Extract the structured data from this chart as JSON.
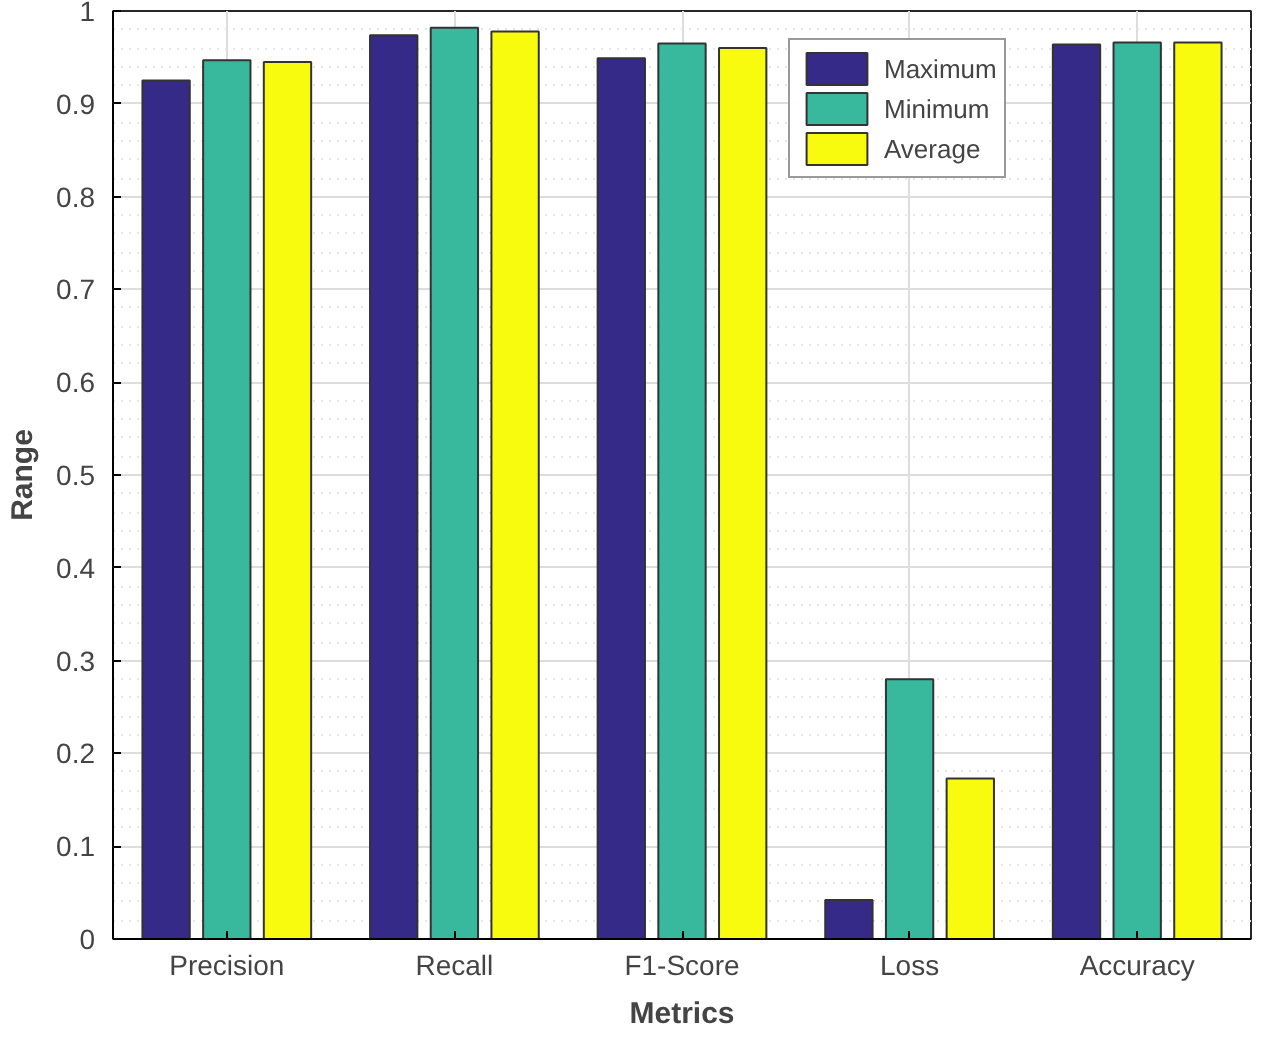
{
  "chart_data": {
    "type": "bar",
    "xlabel": "Metrics",
    "ylabel": "Range",
    "categories": [
      "Precision",
      "Recall",
      "F1-Score",
      "Loss",
      "Accuracy"
    ],
    "series": [
      {
        "name": "Maximum",
        "color": "#352a87",
        "values": [
          0.925,
          0.974,
          0.949,
          0.042,
          0.964
        ]
      },
      {
        "name": "Minimum",
        "color": "#38b99e",
        "values": [
          0.947,
          0.982,
          0.965,
          0.28,
          0.966
        ]
      },
      {
        "name": "Average",
        "color": "#f9fb0e",
        "values": [
          0.945,
          0.978,
          0.96,
          0.173,
          0.966
        ]
      }
    ],
    "ylim": [
      0,
      1
    ],
    "yticks": [
      0,
      0.1,
      0.2,
      0.3,
      0.4,
      0.5,
      0.6,
      0.7,
      0.8,
      0.9,
      1
    ],
    "grid": true,
    "legend": "top right"
  }
}
